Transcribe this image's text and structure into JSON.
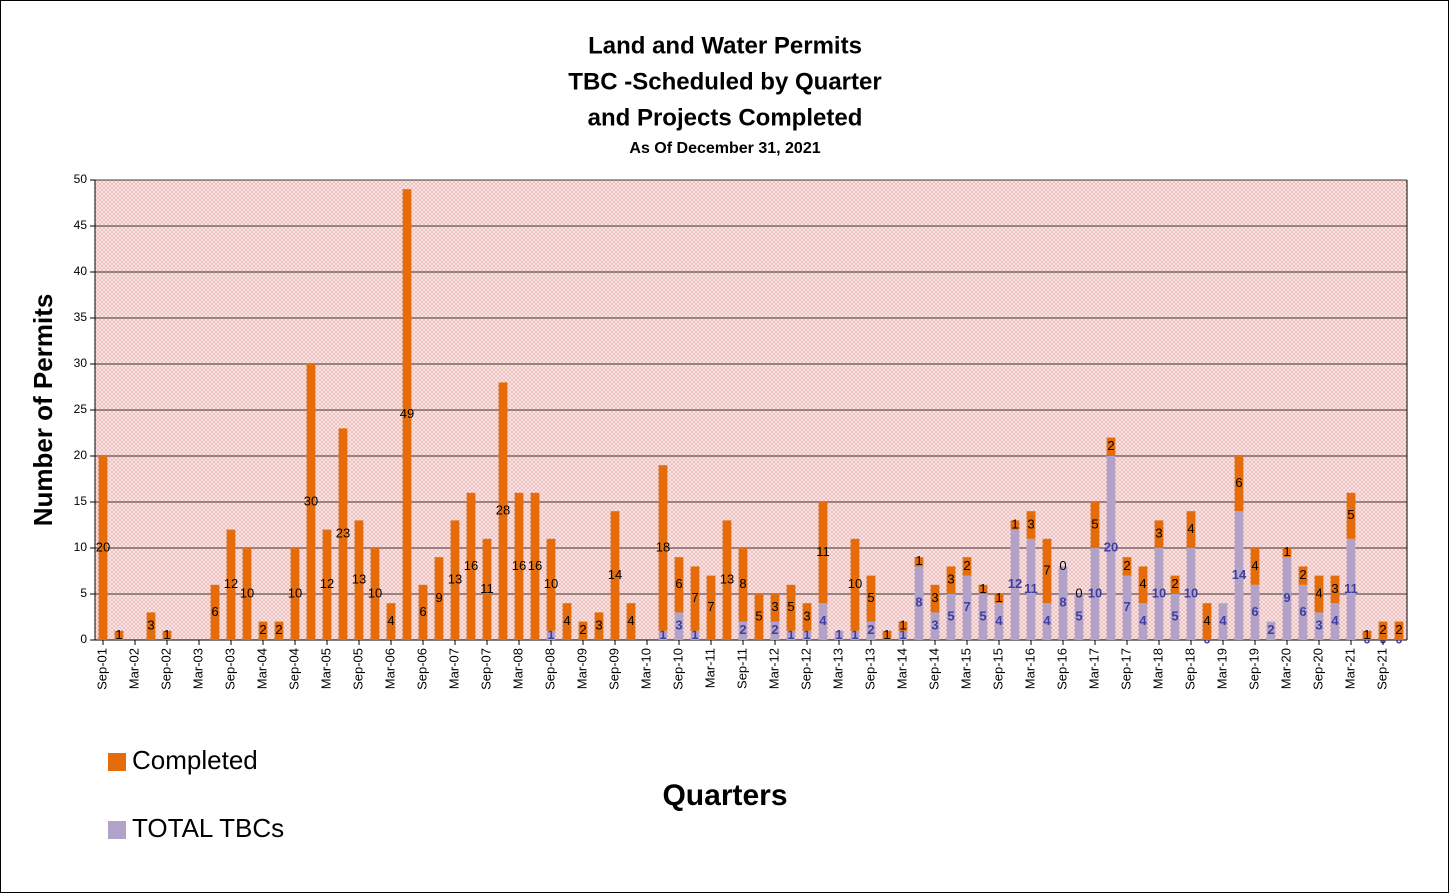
{
  "chart_data": {
    "type": "stacked_bar",
    "title": [
      "Land and Water Permits",
      "TBC -Scheduled by Quarter",
      "and Projects Completed"
    ],
    "subtitle": "As Of  December 31, 2021",
    "x_label": "Quarters",
    "y_label": "Number of Permits",
    "categories": [
      "Sep-01",
      null,
      "Mar-02",
      null,
      "Sep-02",
      null,
      "Mar-03",
      null,
      "Sep-03",
      null,
      "Mar-04",
      null,
      "Sep-04",
      null,
      "Mar-05",
      null,
      "Sep-05",
      null,
      "Mar-06",
      null,
      "Sep-06",
      null,
      "Mar-07",
      null,
      "Sep-07",
      null,
      "Mar-08",
      null,
      "Sep-08",
      null,
      "Mar-09",
      null,
      "Sep-09",
      null,
      "Mar-10",
      null,
      "Sep-10",
      null,
      "Mar-11",
      null,
      "Sep-11",
      null,
      "Mar-12",
      null,
      "Sep-12",
      null,
      "Mar-13",
      null,
      "Sep-13",
      null,
      "Mar-14",
      null,
      "Sep-14",
      null,
      "Mar-15",
      null,
      "Sep-15",
      null,
      "Mar-16",
      null,
      "Sep-16",
      null,
      "Mar-17",
      null,
      "Sep-17",
      null,
      "Mar-18",
      null,
      "Sep-18",
      null,
      "Mar-19",
      null,
      "Sep-19",
      null,
      "Mar-20",
      null,
      "Sep-20",
      null,
      "Mar-21",
      null,
      "Sep-21",
      null
    ],
    "series": [
      {
        "name": "Completed",
        "color": "#e46c0a",
        "label_color": "#000000",
        "values": [
          20,
          1,
          null,
          3,
          1,
          null,
          null,
          6,
          12,
          10,
          2,
          2,
          10,
          30,
          12,
          23,
          13,
          10,
          4,
          49,
          6,
          9,
          13,
          16,
          11,
          28,
          16,
          16,
          10,
          4,
          2,
          3,
          14,
          4,
          null,
          18,
          6,
          7,
          7,
          13,
          8,
          5,
          3,
          5,
          3,
          11,
          null,
          10,
          5,
          1,
          1,
          1,
          3,
          3,
          2,
          1,
          1,
          1,
          3,
          7,
          0,
          0,
          5,
          2,
          2,
          4,
          3,
          2,
          4,
          4,
          null,
          6,
          4,
          null,
          1,
          2,
          4,
          3,
          5,
          1,
          2,
          2
        ]
      },
      {
        "name": "TOTAL TBCs",
        "color": "#b3a2c7",
        "label_color": "#3f3fa0",
        "values": [
          null,
          null,
          null,
          null,
          null,
          null,
          null,
          null,
          null,
          null,
          null,
          null,
          null,
          null,
          null,
          null,
          null,
          null,
          null,
          null,
          null,
          null,
          null,
          null,
          null,
          null,
          null,
          null,
          1,
          null,
          null,
          null,
          null,
          null,
          null,
          1,
          3,
          1,
          null,
          null,
          2,
          null,
          2,
          1,
          1,
          4,
          1,
          1,
          2,
          null,
          1,
          8,
          3,
          5,
          7,
          5,
          4,
          12,
          11,
          4,
          8,
          5,
          10,
          20,
          7,
          4,
          10,
          5,
          10,
          0,
          4,
          14,
          6,
          2,
          9,
          6,
          3,
          4,
          11,
          0,
          0,
          0
        ]
      }
    ],
    "ylim": [
      0,
      50
    ],
    "yticks": [
      0,
      5,
      10,
      15,
      20,
      25,
      30,
      35,
      40,
      45,
      50
    ],
    "grid": true,
    "legend": "bottom-left"
  }
}
